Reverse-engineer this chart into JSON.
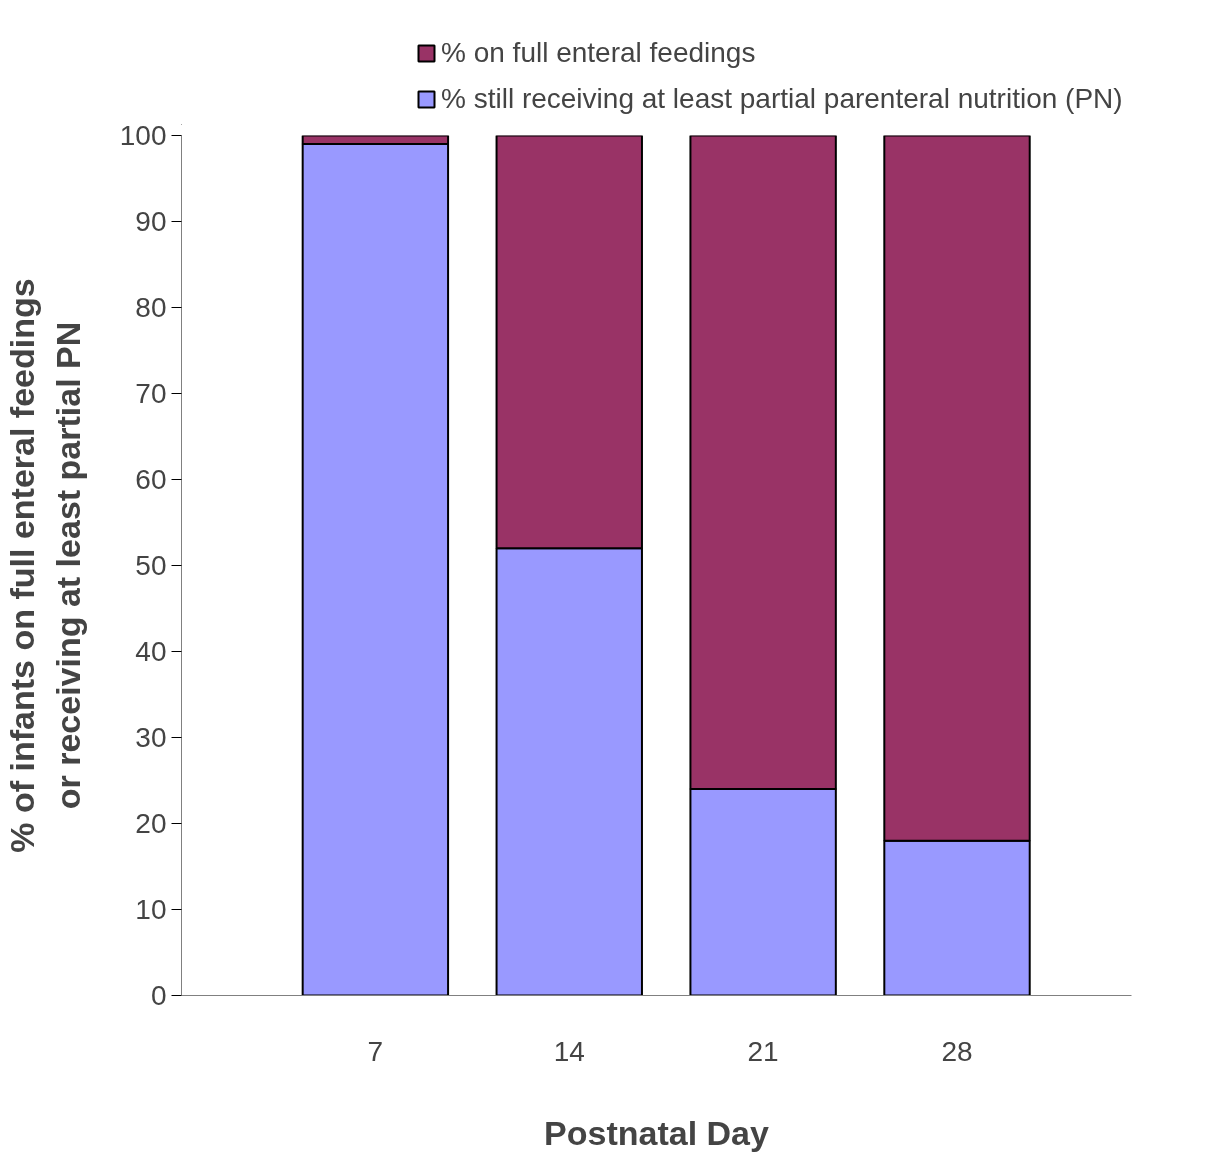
{
  "chart_data": {
    "type": "bar",
    "stacked": true,
    "xlabel": "Postnatal Day",
    "ylabel": "% of infants on full enteral feedings\nor receiving at least partial PN",
    "categories": [
      "7",
      "14",
      "21",
      "28"
    ],
    "series": [
      {
        "name": "% still receiving at least partial parenteral nutrition (PN)",
        "color": "#9999ff",
        "values": [
          99,
          52,
          24,
          18
        ]
      },
      {
        "name": "% on full enteral feedings",
        "color": "#993366",
        "values": [
          1,
          48,
          76,
          82
        ]
      }
    ],
    "ylim": [
      0,
      100
    ],
    "yticks": [
      0,
      10,
      20,
      30,
      40,
      50,
      60,
      70,
      80,
      90,
      100
    ],
    "grid": false,
    "legend": "top"
  }
}
